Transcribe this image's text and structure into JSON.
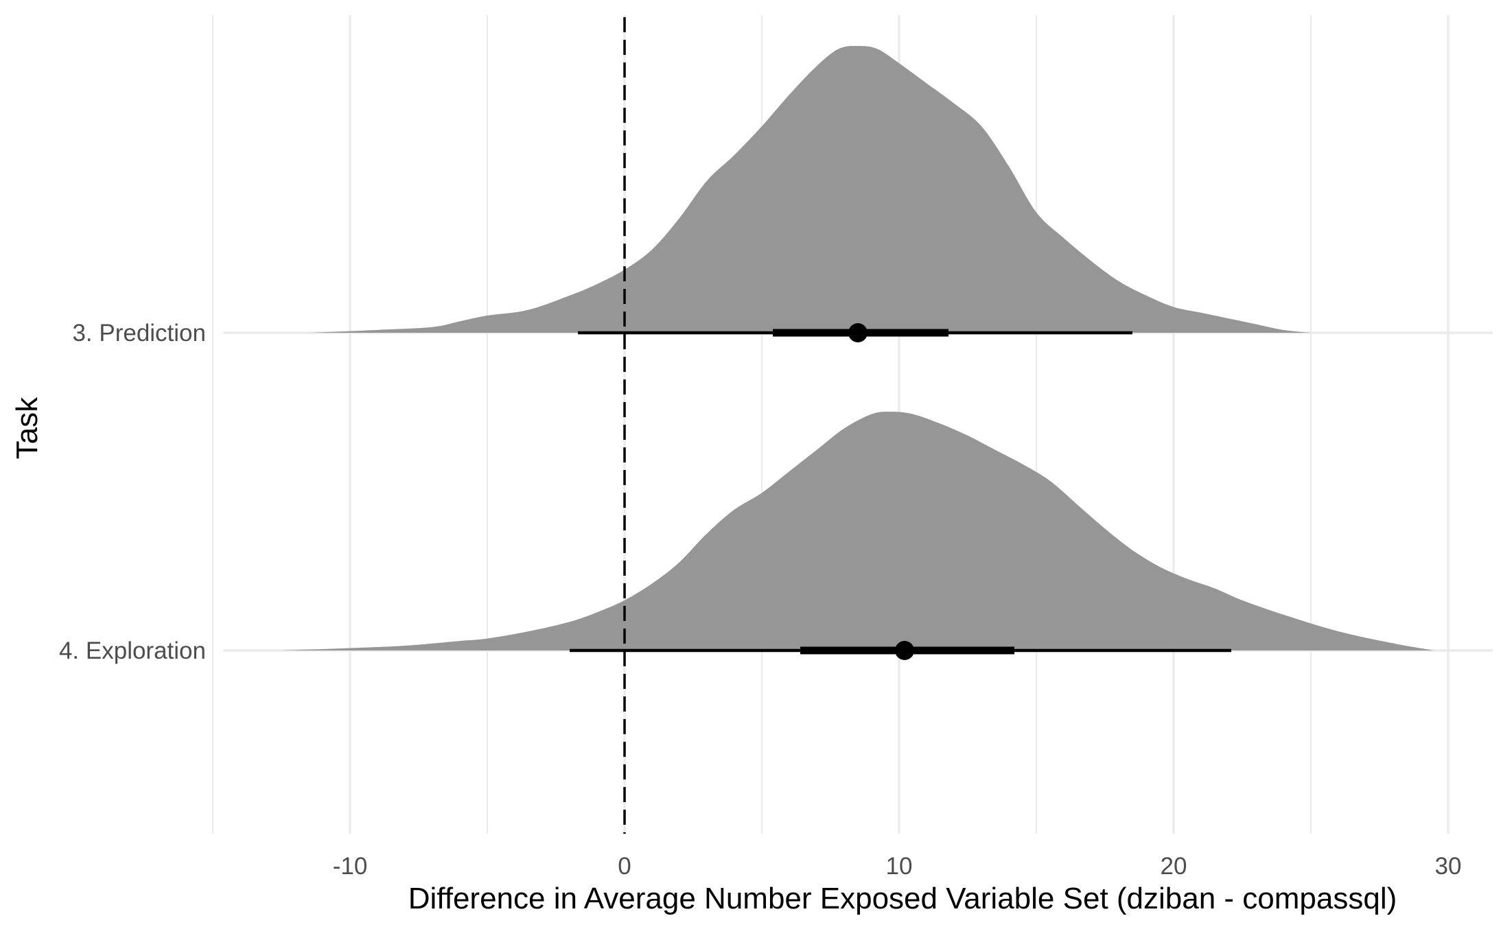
{
  "chart_data": {
    "type": "area",
    "subtype": "halfeye-density",
    "title": "",
    "xlabel": "Difference in Average Number Exposed Variable Set (dziban - compassql)",
    "ylabel": "Task",
    "xlim": [
      -15,
      31.5
    ],
    "x_ticks": [
      -10,
      0,
      10,
      20,
      30
    ],
    "x_tick_labels": [
      "-10",
      "0",
      "10",
      "20",
      "30"
    ],
    "categories": [
      "3. Prediction",
      "4. Exploration"
    ],
    "reference_line": {
      "x": 0,
      "style": "dashed"
    },
    "grid": true,
    "legend": "none",
    "colors": {
      "density_fill": "#969696",
      "interval": "#000000",
      "grid": "#ebebeb"
    },
    "series": [
      {
        "category": "3. Prediction",
        "point_estimate": 8.5,
        "interval_66": [
          5.4,
          11.8
        ],
        "interval_95": [
          -1.7,
          18.5
        ],
        "density": {
          "x": [
            -11.5,
            -9,
            -7,
            -6,
            -5,
            -3.5,
            -2,
            -1,
            0,
            1,
            2,
            3,
            4,
            5,
            6,
            7,
            7.8,
            8.5,
            9.2,
            10,
            11,
            12,
            13,
            14,
            15,
            16,
            17,
            18,
            19,
            20,
            21,
            22,
            23,
            24,
            25
          ],
          "y": [
            0.0,
            0.01,
            0.02,
            0.04,
            0.06,
            0.08,
            0.13,
            0.17,
            0.22,
            0.29,
            0.4,
            0.53,
            0.62,
            0.72,
            0.83,
            0.93,
            0.99,
            1.0,
            0.99,
            0.94,
            0.87,
            0.8,
            0.72,
            0.58,
            0.42,
            0.33,
            0.25,
            0.18,
            0.13,
            0.09,
            0.07,
            0.05,
            0.03,
            0.01,
            0.0
          ]
        }
      },
      {
        "category": "4. Exploration",
        "point_estimate": 10.2,
        "interval_66": [
          6.4,
          14.2
        ],
        "interval_95": [
          -2,
          22.1
        ],
        "density": {
          "x": [
            -12.5,
            -10,
            -8,
            -6,
            -5,
            -3.5,
            -2,
            -1,
            0,
            1,
            2,
            3,
            4,
            5,
            6,
            7,
            8,
            9,
            9.7,
            10.5,
            11.5,
            12.5,
            13.5,
            14.5,
            15.5,
            16.5,
            17.5,
            18.5,
            19.5,
            20.5,
            21.5,
            22.5,
            24,
            26,
            28,
            29.5
          ],
          "y": [
            0.0,
            0.01,
            0.02,
            0.04,
            0.05,
            0.08,
            0.12,
            0.16,
            0.21,
            0.28,
            0.37,
            0.49,
            0.59,
            0.66,
            0.75,
            0.84,
            0.93,
            0.99,
            1.0,
            0.99,
            0.95,
            0.9,
            0.84,
            0.78,
            0.71,
            0.61,
            0.51,
            0.42,
            0.35,
            0.3,
            0.26,
            0.21,
            0.15,
            0.08,
            0.03,
            0.0
          ]
        }
      }
    ]
  }
}
